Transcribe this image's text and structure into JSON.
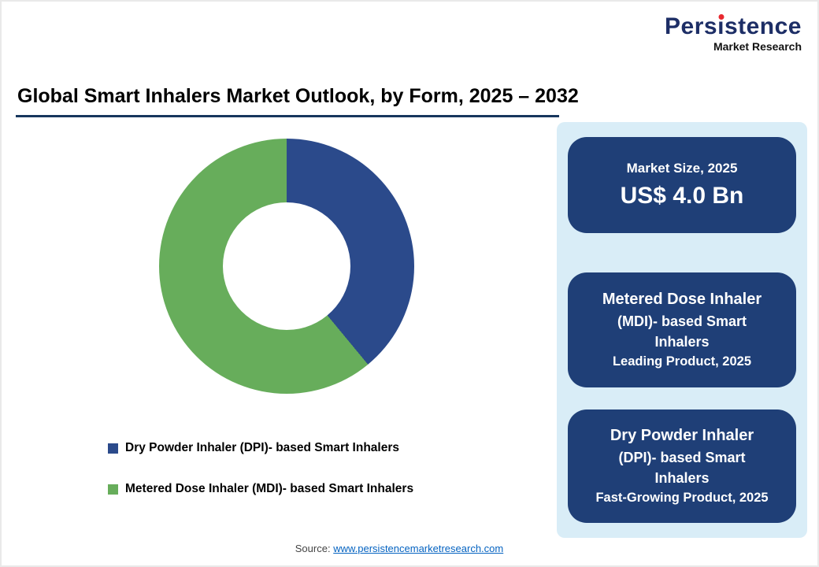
{
  "logo": {
    "word_pre": "Pers",
    "word_i": "ı",
    "word_post": "stence",
    "subtitle": "Market Research",
    "brand_navy": "#1d2e66",
    "dot_red": "#e8282f"
  },
  "header": {
    "title": "Global Smart Inhalers Market Outlook, by Form, 2025 – 2032",
    "rule_color": "#17365d"
  },
  "chart_data": {
    "type": "pie",
    "subtype": "donut",
    "title": "Global Smart Inhalers Market Outlook, by Form, 2025 – 2032",
    "unit": "percent share (estimated from slice angles)",
    "slices": [
      {
        "label": "Dry Powder Inhaler (DPI)- based Smart Inhalers",
        "value": 39,
        "color": "#2b4a8b"
      },
      {
        "label": "Metered Dose Inhaler (MDI)- based Smart Inhalers",
        "value": 61,
        "color": "#67ad5b"
      }
    ],
    "start_angle_deg": 0,
    "direction": "clockwise",
    "donut_hole_ratio": 0.5,
    "legend_position": "bottom-left"
  },
  "side_panel": {
    "bg_color": "#d9edf7",
    "card_color": "#1f3f77",
    "cards": [
      {
        "line1": "Market Size, 2025",
        "value": "US$ 4.0 Bn"
      },
      {
        "title": "Metered Dose Inhaler",
        "line2": "(MDI)- based Smart",
        "line3": "Inhalers",
        "subtitle": "Leading Product, 2025"
      },
      {
        "title": "Dry Powder Inhaler",
        "line2": "(DPI)- based Smart",
        "line3": "Inhalers",
        "subtitle": "Fast-Growing Product, 2025"
      }
    ]
  },
  "footer": {
    "source_label": "Source:",
    "source_link": "www.persistencemarketresearch.com",
    "link_color": "#0563c1"
  }
}
